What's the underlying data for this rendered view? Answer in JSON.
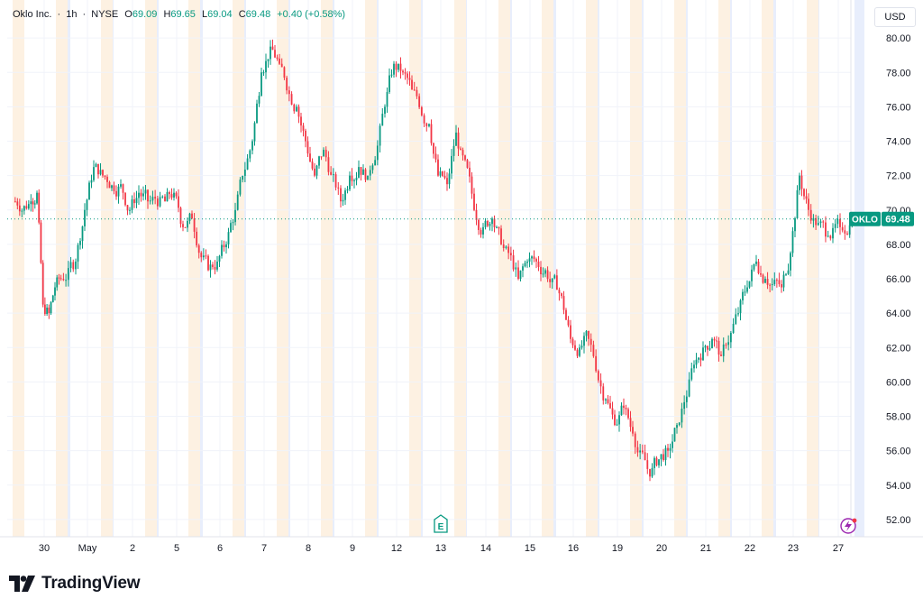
{
  "legend": {
    "symbol_name": "Oklo Inc.",
    "interval": "1h",
    "exchange": "NYSE",
    "open_label": "O",
    "open_value": "69.09",
    "high_label": "H",
    "high_value": "69.65",
    "low_label": "L",
    "low_value": "69.04",
    "close_label": "C",
    "close_value": "69.48",
    "change": "+0.40 (+0.58%)"
  },
  "currency": "USD",
  "price_tag": {
    "symbol": "OKLO",
    "price": "69.48"
  },
  "brand": {
    "name": "TradingView"
  },
  "colors": {
    "up": "#089981",
    "down": "#f23645",
    "grid": "#f0f3fa",
    "premarket": "#fdf1e2",
    "afterhours": "#e8eefc"
  },
  "chart_data": {
    "type": "candlestick",
    "title": "Oklo Inc. · 1h · NYSE",
    "y_axis": {
      "range": [
        51,
        82
      ],
      "ticks": [
        "52.00",
        "54.00",
        "56.00",
        "58.00",
        "60.00",
        "62.00",
        "64.00",
        "66.00",
        "68.00",
        "70.00",
        "72.00",
        "74.00",
        "76.00",
        "78.00",
        "80.00"
      ]
    },
    "x_axis": {
      "ticks": [
        "30",
        "May",
        "2",
        "5",
        "6",
        "7",
        "8",
        "9",
        "12",
        "13",
        "14",
        "15",
        "16",
        "19",
        "20",
        "21",
        "22",
        "23",
        "27"
      ]
    },
    "last_price": 69.48,
    "events": [
      {
        "type": "earnings",
        "label": "E",
        "at": "13"
      }
    ],
    "price_path": [
      [
        "30",
        70.5
      ],
      [
        "30",
        71.0
      ],
      [
        "30",
        64.5
      ],
      [
        "30",
        64.0
      ],
      [
        "30",
        65.5
      ],
      [
        "30",
        66.0
      ],
      [
        "May",
        67.0
      ],
      [
        "May",
        70.0
      ],
      [
        "May",
        72.5
      ],
      [
        "May",
        72.0
      ],
      [
        "2",
        71.5
      ],
      [
        "2",
        70.0
      ],
      [
        "2",
        71.0
      ],
      [
        "2",
        70.5
      ],
      [
        "5",
        70.5
      ],
      [
        "5",
        71.0
      ],
      [
        "5",
        69.0
      ],
      [
        "5",
        69.5
      ],
      [
        "6",
        66.5
      ],
      [
        "6",
        67.0
      ],
      [
        "6",
        68.0
      ],
      [
        "6",
        70.0
      ],
      [
        "7",
        74.0
      ],
      [
        "7",
        78.0
      ],
      [
        "7",
        79.5
      ],
      [
        "7",
        78.5
      ],
      [
        "8",
        76.0
      ],
      [
        "8",
        74.0
      ],
      [
        "8",
        72.0
      ],
      [
        "8",
        73.5
      ],
      [
        "9",
        70.5
      ],
      [
        "9",
        72.0
      ],
      [
        "9",
        72.5
      ],
      [
        "9",
        72.0
      ],
      [
        "12",
        76.0
      ],
      [
        "12",
        78.5
      ],
      [
        "12",
        78.0
      ],
      [
        "12",
        77.0
      ],
      [
        "13",
        75.0
      ],
      [
        "13",
        72.0
      ],
      [
        "13",
        71.5
      ],
      [
        "13",
        74.5
      ],
      [
        "14",
        70.0
      ],
      [
        "14",
        69.0
      ],
      [
        "14",
        69.5
      ],
      [
        "14",
        68.0
      ],
      [
        "15",
        66.0
      ],
      [
        "15",
        67.0
      ],
      [
        "15",
        67.0
      ],
      [
        "15",
        66.5
      ],
      [
        "16",
        65.0
      ],
      [
        "16",
        62.5
      ],
      [
        "16",
        62.0
      ],
      [
        "16",
        62.5
      ],
      [
        "19",
        59.0
      ],
      [
        "19",
        57.5
      ],
      [
        "19",
        58.5
      ],
      [
        "19",
        57.0
      ],
      [
        "20",
        54.5
      ],
      [
        "20",
        55.5
      ],
      [
        "20",
        56.0
      ],
      [
        "20",
        57.5
      ],
      [
        "21",
        61.0
      ],
      [
        "21",
        62.0
      ],
      [
        "21",
        62.5
      ],
      [
        "21",
        61.5
      ],
      [
        "22",
        64.0
      ],
      [
        "22",
        65.5
      ],
      [
        "22",
        67.0
      ],
      [
        "22",
        66.0
      ],
      [
        "23",
        65.5
      ],
      [
        "23",
        67.5
      ],
      [
        "23",
        72.0
      ],
      [
        "23",
        70.0
      ],
      [
        "27",
        68.5
      ],
      [
        "27",
        69.0
      ],
      [
        "27",
        69.48
      ]
    ]
  }
}
